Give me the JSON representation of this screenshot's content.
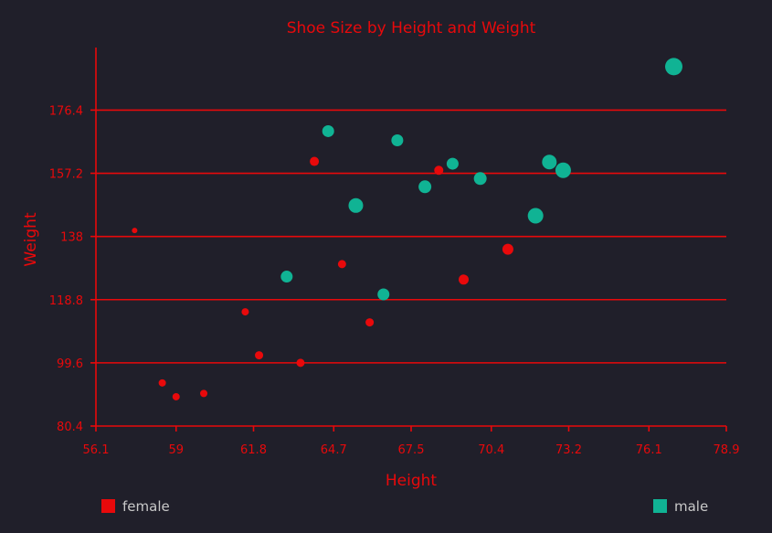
{
  "chart_data": {
    "type": "scatter",
    "title": "Shoe Size by Height and Weight",
    "xlabel": "Height",
    "ylabel": "Weight",
    "xlim": [
      56.1,
      78.9
    ],
    "ylim": [
      80.4,
      195.6
    ],
    "x_ticks": [
      "56.1",
      "59",
      "61.8",
      "64.7",
      "67.5",
      "70.4",
      "73.2",
      "76.1",
      "78.9"
    ],
    "y_ticks": [
      "80.4",
      "99.6",
      "118.8",
      "138",
      "157.2",
      "176.4"
    ],
    "grid": "horizontal",
    "legend_position": "bottom",
    "marker_size_meaning": "shoe size",
    "series": [
      {
        "name": "female",
        "color": "#e8090b",
        "points": [
          {
            "x": 57.5,
            "y": 139.8,
            "size": 3
          },
          {
            "x": 58.5,
            "y": 93.5,
            "size": 4
          },
          {
            "x": 59.0,
            "y": 89.3,
            "size": 4
          },
          {
            "x": 60.0,
            "y": 90.3,
            "size": 4
          },
          {
            "x": 61.5,
            "y": 115.1,
            "size": 4
          },
          {
            "x": 62.0,
            "y": 101.9,
            "size": 4.5
          },
          {
            "x": 63.5,
            "y": 99.6,
            "size": 4.5
          },
          {
            "x": 64.0,
            "y": 160.8,
            "size": 5
          },
          {
            "x": 65.0,
            "y": 129.6,
            "size": 4.5
          },
          {
            "x": 66.0,
            "y": 111.9,
            "size": 4.5
          },
          {
            "x": 68.5,
            "y": 158.1,
            "size": 5
          },
          {
            "x": 69.4,
            "y": 124.9,
            "size": 5.5
          },
          {
            "x": 71.0,
            "y": 134.1,
            "size": 6
          }
        ]
      },
      {
        "name": "male",
        "color": "#10b394",
        "points": [
          {
            "x": 63.0,
            "y": 125.8,
            "size": 6.5
          },
          {
            "x": 64.5,
            "y": 170.0,
            "size": 6.5
          },
          {
            "x": 65.5,
            "y": 147.4,
            "size": 8
          },
          {
            "x": 66.5,
            "y": 120.4,
            "size": 6.5
          },
          {
            "x": 67.0,
            "y": 167.2,
            "size": 6.5
          },
          {
            "x": 68.0,
            "y": 153.1,
            "size": 7
          },
          {
            "x": 69.0,
            "y": 160.1,
            "size": 6.5
          },
          {
            "x": 70.0,
            "y": 155.6,
            "size": 7
          },
          {
            "x": 72.0,
            "y": 144.3,
            "size": 8.5
          },
          {
            "x": 72.5,
            "y": 160.6,
            "size": 8
          },
          {
            "x": 73.0,
            "y": 158.1,
            "size": 8.5
          },
          {
            "x": 77.0,
            "y": 189.6,
            "size": 9.5
          }
        ]
      }
    ]
  },
  "colors": {
    "background": "#201f2a",
    "accent": "#e8090b",
    "legend_text": "#c9c9c9"
  }
}
